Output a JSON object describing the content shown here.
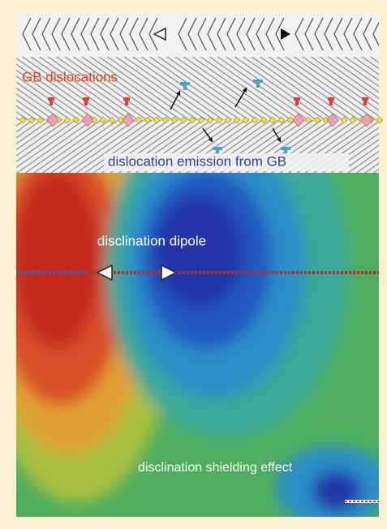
{
  "annotations": {
    "gb_dislocations": "GB dislocations",
    "dislocation_emission": "dislocation emission from GB",
    "disclination_dipole": "disclination dipole",
    "shielding_effect": "disclination shielding effect"
  }
}
